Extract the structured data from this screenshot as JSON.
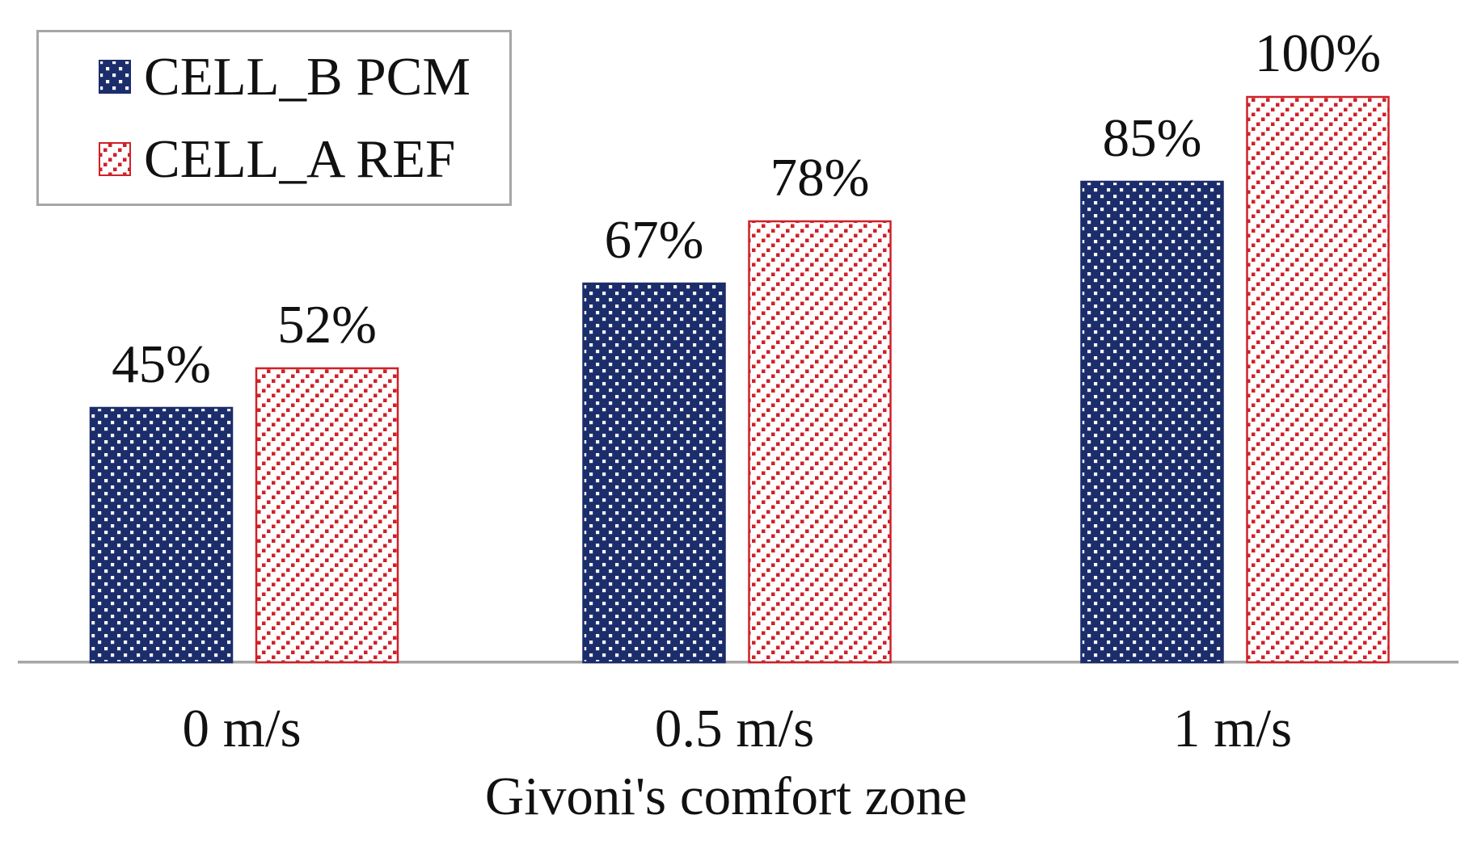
{
  "figure": {
    "background": "#ffffff",
    "text_color": "#111111"
  },
  "legend": {
    "position": "top-left",
    "border_color": "#a6a6a6",
    "items": [
      {
        "label": "CELL_B PCM",
        "swatch": "navy-dotted-square",
        "color": "#1c2d6b"
      },
      {
        "label": "CELL_A REF",
        "swatch": "red-diagonal-hatch-square",
        "color": "#cf2128"
      }
    ]
  },
  "chart_data": {
    "type": "bar",
    "categories": [
      "0 m/s",
      "0.5 m/s",
      "1 m/s"
    ],
    "series": [
      {
        "name": "CELL_B PCM",
        "values": [
          45,
          67,
          85
        ],
        "color": "#1c2d6b",
        "pattern": "white-dots-on-navy"
      },
      {
        "name": "CELL_A REF",
        "values": [
          52,
          78,
          100
        ],
        "color": "#cf2128",
        "pattern": "red-dotted-diagonal-hatch-on-white"
      }
    ],
    "data_labels": [
      "45%",
      "52%",
      "67%",
      "78%",
      "85%",
      "100%"
    ],
    "unit": "%",
    "title": "",
    "xlabel": "Givoni's comfort zone",
    "ylabel": "",
    "ylim": [
      0,
      100
    ],
    "grid": false,
    "y_axis_visible": false,
    "axis_line_color": "#a6a6a6",
    "legend_position": "top-left"
  }
}
